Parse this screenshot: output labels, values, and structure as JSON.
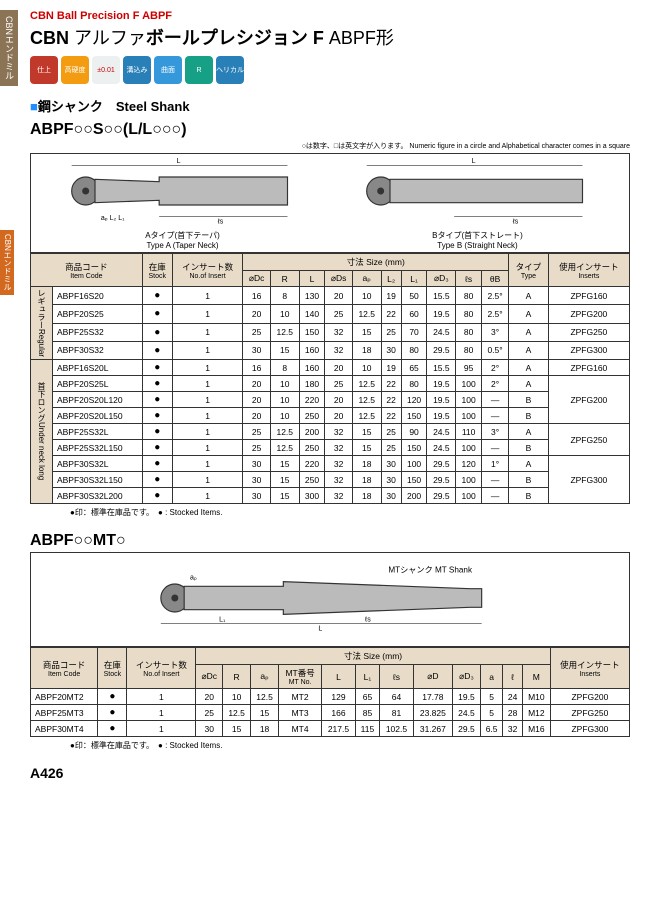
{
  "sideTab1": "CBNエンドミル",
  "sideTab2": "CBNエンドミル",
  "header": {
    "subtitleEn": "CBN Ball Precision F ABPF",
    "titleMain1": "CBN",
    "titleMain2": "アルファ",
    "titleMain3": "ボールプレシジョン F",
    "titleMain4": "ABPF形"
  },
  "icons": [
    {
      "bg": "#c0392b",
      "label": "仕上"
    },
    {
      "bg": "#f39c12",
      "label": "高硬度"
    },
    {
      "bg": "#ecf0f1",
      "label": "±0.01"
    },
    {
      "bg": "#2980b9",
      "label": "溝込み"
    },
    {
      "bg": "#3498db",
      "label": "曲面"
    },
    {
      "bg": "#16a085",
      "label": "R"
    },
    {
      "bg": "#2980b9",
      "label": "ヘリカル"
    }
  ],
  "sectionLabel": {
    "sq": "■",
    "jp": "鋼シャンク",
    "en": "Steel Shank"
  },
  "model1": {
    "code": "ABPF○○S○○(L/L○○○)",
    "note": "○は数字、□は英文字が入ります。\nNumeric figure in a circle and Alphabetical character comes in a square",
    "diagA": {
      "caption": "Aタイプ(首下テーパ)",
      "captionEn": "Type A (Taper Neck)",
      "labels": [
        "L",
        "ℓs",
        "aₚ",
        "L₂",
        "L₁",
        "⌀Dc",
        "⌀Ds"
      ]
    },
    "diagB": {
      "caption": "Bタイプ(首下ストレート)",
      "captionEn": "Type B (Straight Neck)",
      "labels": [
        "L",
        "ℓs",
        "⌀Dc",
        "⌀Ds"
      ]
    },
    "headers": {
      "itemCode": "商品コード",
      "itemCodeEn": "Item Code",
      "stock": "在庫",
      "stockEn": "Stock",
      "inserts": "インサート数",
      "insertsEn": "No.of Insert",
      "size": "寸法 Size (mm)",
      "Dc": "⌀Dc",
      "R": "R",
      "L": "L",
      "Ds": "⌀Ds",
      "ap": "aₚ",
      "L2": "L₂",
      "L1": "L₁",
      "D3": "⌀D₃",
      "ls": "ℓs",
      "thB": "θB",
      "type": "タイプ",
      "typeEn": "Type",
      "useInsert": "使用インサート",
      "useInsertEn": "Inserts"
    },
    "groups": [
      {
        "label": "レギュラー",
        "labelEn": "Regular",
        "rows": [
          {
            "code": "ABPF16S20",
            "stock": "●",
            "n": "1",
            "Dc": "16",
            "R": "8",
            "L": "130",
            "Ds": "20",
            "ap": "10",
            "L2": "19",
            "L1": "50",
            "D3": "15.5",
            "ls": "80",
            "thB": "2.5°",
            "type": "A",
            "ins": "ZPFG160"
          },
          {
            "code": "ABPF20S25",
            "stock": "●",
            "n": "1",
            "Dc": "20",
            "R": "10",
            "L": "140",
            "Ds": "25",
            "ap": "12.5",
            "L2": "22",
            "L1": "60",
            "D3": "19.5",
            "ls": "80",
            "thB": "2.5°",
            "type": "A",
            "ins": "ZPFG200"
          },
          {
            "code": "ABPF25S32",
            "stock": "●",
            "n": "1",
            "Dc": "25",
            "R": "12.5",
            "L": "150",
            "Ds": "32",
            "ap": "15",
            "L2": "25",
            "L1": "70",
            "D3": "24.5",
            "ls": "80",
            "thB": "3°",
            "type": "A",
            "ins": "ZPFG250"
          },
          {
            "code": "ABPF30S32",
            "stock": "●",
            "n": "1",
            "Dc": "30",
            "R": "15",
            "L": "160",
            "Ds": "32",
            "ap": "18",
            "L2": "30",
            "L1": "80",
            "D3": "29.5",
            "ls": "80",
            "thB": "0.5°",
            "type": "A",
            "ins": "ZPFG300"
          }
        ]
      },
      {
        "label": "首下ロング",
        "labelEn": "Under neck long",
        "rows": [
          {
            "code": "ABPF16S20L",
            "stock": "●",
            "n": "1",
            "Dc": "16",
            "R": "8",
            "L": "160",
            "Ds": "20",
            "ap": "10",
            "L2": "19",
            "L1": "65",
            "D3": "15.5",
            "ls": "95",
            "thB": "2°",
            "type": "A",
            "ins": "ZPFG160"
          },
          {
            "code": "ABPF20S25L",
            "stock": "●",
            "n": "1",
            "Dc": "20",
            "R": "10",
            "L": "180",
            "Ds": "25",
            "ap": "12.5",
            "L2": "22",
            "L1": "80",
            "D3": "19.5",
            "ls": "100",
            "thB": "2°",
            "type": "A",
            "ins": "ZPFG200",
            "insSpan": 3
          },
          {
            "code": "ABPF20S20L120",
            "stock": "●",
            "n": "1",
            "Dc": "20",
            "R": "10",
            "L": "220",
            "Ds": "20",
            "ap": "12.5",
            "L2": "22",
            "L1": "120",
            "D3": "19.5",
            "ls": "100",
            "thB": "—",
            "type": "B"
          },
          {
            "code": "ABPF20S20L150",
            "stock": "●",
            "n": "1",
            "Dc": "20",
            "R": "10",
            "L": "250",
            "Ds": "20",
            "ap": "12.5",
            "L2": "22",
            "L1": "150",
            "D3": "19.5",
            "ls": "100",
            "thB": "—",
            "type": "B"
          },
          {
            "code": "ABPF25S32L",
            "stock": "●",
            "n": "1",
            "Dc": "25",
            "R": "12.5",
            "L": "200",
            "Ds": "32",
            "ap": "15",
            "L2": "25",
            "L1": "90",
            "D3": "24.5",
            "ls": "110",
            "thB": "3°",
            "type": "A",
            "ins": "ZPFG250",
            "insSpan": 2
          },
          {
            "code": "ABPF25S32L150",
            "stock": "●",
            "n": "1",
            "Dc": "25",
            "R": "12.5",
            "L": "250",
            "Ds": "32",
            "ap": "15",
            "L2": "25",
            "L1": "150",
            "D3": "24.5",
            "ls": "100",
            "thB": "—",
            "type": "B"
          },
          {
            "code": "ABPF30S32L",
            "stock": "●",
            "n": "1",
            "Dc": "30",
            "R": "15",
            "L": "220",
            "Ds": "32",
            "ap": "18",
            "L2": "30",
            "L1": "100",
            "D3": "29.5",
            "ls": "120",
            "thB": "1°",
            "type": "A",
            "ins": "ZPFG300",
            "insSpan": 3
          },
          {
            "code": "ABPF30S32L150",
            "stock": "●",
            "n": "1",
            "Dc": "30",
            "R": "15",
            "L": "250",
            "Ds": "32",
            "ap": "18",
            "L2": "30",
            "L1": "150",
            "D3": "29.5",
            "ls": "100",
            "thB": "—",
            "type": "B"
          },
          {
            "code": "ABPF30S32L200",
            "stock": "●",
            "n": "1",
            "Dc": "30",
            "R": "15",
            "L": "300",
            "Ds": "32",
            "ap": "18",
            "L2": "30",
            "L1": "200",
            "D3": "29.5",
            "ls": "100",
            "thB": "—",
            "type": "B"
          }
        ]
      }
    ],
    "tableNote": "●印：標準在庫品です。　● : Stocked Items."
  },
  "model2": {
    "code": "ABPF○○MT○",
    "diag": {
      "caption": "MTシャンク MT Shank",
      "labels": [
        "aₚ",
        "L₁",
        "ℓs",
        "⌀Dc",
        "⌀D",
        "L"
      ]
    },
    "headers": {
      "itemCode": "商品コード",
      "itemCodeEn": "Item Code",
      "stock": "在庫",
      "stockEn": "Stock",
      "inserts": "インサート数",
      "insertsEn": "No.of Insert",
      "size": "寸法 Size (mm)",
      "Dc": "⌀Dc",
      "R": "R",
      "ap": "aₚ",
      "MT": "MT番号",
      "MTen": "MT No.",
      "L": "L",
      "L1": "L₁",
      "ls": "ℓs",
      "D": "⌀D",
      "D3": "⌀D₃",
      "a": "a",
      "l": "ℓ",
      "M": "M",
      "useInsert": "使用インサート",
      "useInsertEn": "Inserts"
    },
    "rows": [
      {
        "code": "ABPF20MT2",
        "stock": "●",
        "n": "1",
        "Dc": "20",
        "R": "10",
        "ap": "12.5",
        "MT": "MT2",
        "L": "129",
        "L1": "65",
        "ls": "64",
        "D": "17.78",
        "D3": "19.5",
        "a": "5",
        "l": "24",
        "M": "M10",
        "ins": "ZPFG200"
      },
      {
        "code": "ABPF25MT3",
        "stock": "●",
        "n": "1",
        "Dc": "25",
        "R": "12.5",
        "ap": "15",
        "MT": "MT3",
        "L": "166",
        "L1": "85",
        "ls": "81",
        "D": "23.825",
        "D3": "24.5",
        "a": "5",
        "l": "28",
        "M": "M12",
        "ins": "ZPFG250"
      },
      {
        "code": "ABPF30MT4",
        "stock": "●",
        "n": "1",
        "Dc": "30",
        "R": "15",
        "ap": "18",
        "MT": "MT4",
        "L": "217.5",
        "L1": "115",
        "ls": "102.5",
        "D": "31.267",
        "D3": "29.5",
        "a": "6.5",
        "l": "32",
        "M": "M16",
        "ins": "ZPFG300"
      }
    ],
    "tableNote": "●印：標準在庫品です。　● : Stocked Items."
  },
  "pageNum": "A426"
}
